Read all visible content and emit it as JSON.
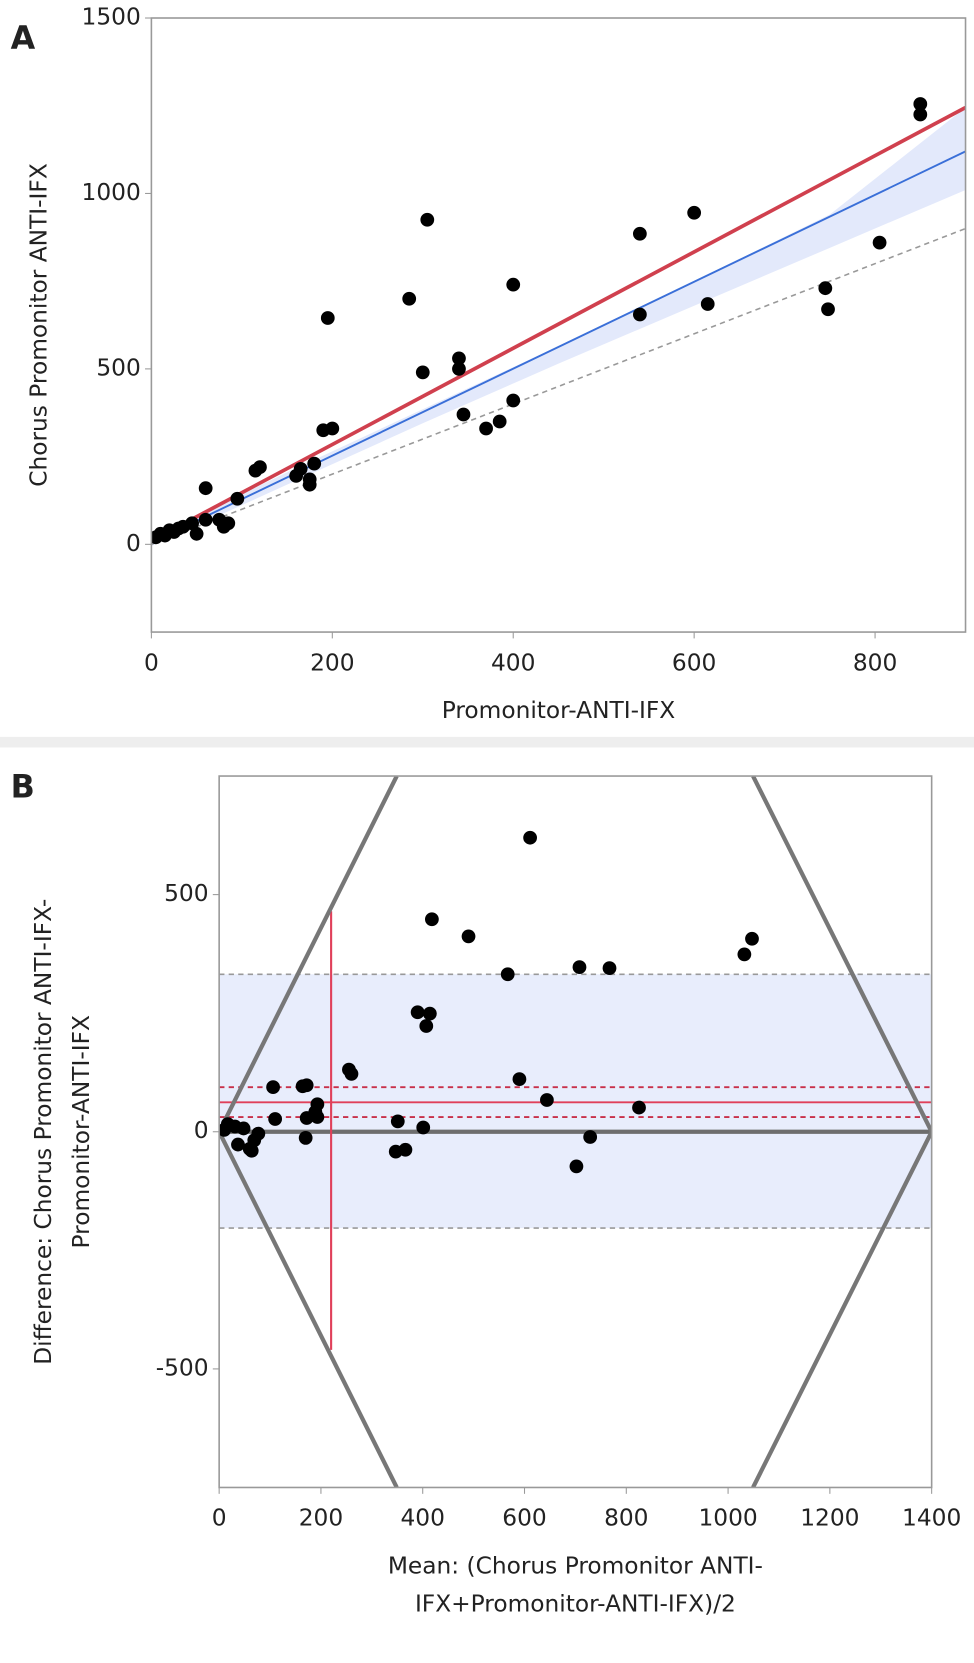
{
  "chart_data": [
    {
      "type": "scatter",
      "label": "A",
      "xlabel": [
        "Promonitor-ANTI-IFX"
      ],
      "ylabel": [
        "Chorus Promonitor ANTI-IFX"
      ],
      "xlim": [
        0,
        900
      ],
      "ylim": [
        -250,
        1500
      ],
      "xticks": [
        0,
        200,
        400,
        600,
        800
      ],
      "yticks": [
        0,
        500,
        1000,
        1500
      ],
      "color": "#000000",
      "x": [
        850,
        850,
        805,
        745,
        748,
        600,
        615,
        540,
        540,
        400,
        400,
        385,
        370,
        345,
        340,
        340,
        305,
        300,
        285,
        195,
        200,
        190,
        180,
        175,
        175,
        165,
        160,
        120,
        115,
        95,
        85,
        80,
        75,
        60,
        60,
        50,
        45,
        35,
        30,
        20,
        10,
        5,
        15,
        25
      ],
      "values": [
        1255,
        1225,
        860,
        730,
        670,
        945,
        685,
        885,
        655,
        740,
        410,
        350,
        330,
        370,
        530,
        500,
        925,
        490,
        700,
        645,
        330,
        325,
        230,
        185,
        170,
        215,
        195,
        220,
        210,
        130,
        60,
        50,
        70,
        70,
        160,
        30,
        60,
        50,
        45,
        40,
        30,
        20,
        25,
        35
      ],
      "band": {
        "color": "#e3e9fb",
        "x": [
          0,
          150,
          300,
          450,
          600,
          750,
          900
        ],
        "lower": [
          -5,
          170,
          345,
          515,
          680,
          845,
          1010
        ],
        "upper": [
          20,
          205,
          385,
          565,
          750,
          940,
          1245
        ]
      },
      "lines": [
        {
          "color": "#999999",
          "dash": true,
          "width": 1.5,
          "x": [
            0,
            900
          ],
          "values": [
            0,
            900
          ]
        },
        {
          "color": "#3a6fd8",
          "dash": false,
          "width": 1.8,
          "x": [
            0,
            900
          ],
          "values": [
            5,
            1120
          ]
        },
        {
          "color": "#d0404e",
          "dash": false,
          "width": 3.5,
          "x": [
            0,
            900
          ],
          "values": [
            10,
            1245
          ]
        }
      ]
    },
    {
      "type": "bland-altman",
      "label": "B",
      "xlabel": [
        "Mean: (Chorus Promonitor ANTI-",
        "IFX+Promonitor-ANTI-IFX)/2"
      ],
      "ylabel": [
        "Difference: Chorus Promonitor ANTI-IFX-",
        "Promonitor-ANTI-IFX"
      ],
      "xlim": [
        0,
        1400
      ],
      "ylim": [
        -750,
        750
      ],
      "xticks": [
        0,
        200,
        400,
        600,
        800,
        1000,
        1200,
        1400
      ],
      "yticks": [
        -500,
        0,
        500
      ],
      "color": "#000000",
      "x": [
        611,
        418,
        490,
        1047,
        1032,
        567,
        708,
        767,
        390,
        414,
        407,
        255,
        260,
        590,
        644,
        825,
        729,
        702,
        401,
        351,
        347,
        366,
        106,
        164,
        172,
        110,
        172,
        193,
        189,
        193,
        170,
        17,
        31,
        48,
        37,
        60,
        69,
        64,
        77,
        10
      ],
      "values": [
        620,
        448,
        412,
        407,
        374,
        332,
        347,
        345,
        252,
        249,
        223,
        131,
        122,
        111,
        67,
        51,
        -11,
        -73,
        9,
        22,
        -42,
        -38,
        94,
        96,
        98,
        27,
        29,
        58,
        42,
        31,
        -13,
        16,
        11,
        7,
        -27,
        -36,
        -18,
        -40,
        -4,
        4
      ],
      "band": {
        "color": "#e8edfc",
        "lower": -203,
        "upper": 332
      },
      "hlines": [
        {
          "value": 332,
          "color": "#999999",
          "dash": true,
          "width": 1.5
        },
        {
          "value": -203,
          "color": "#999999",
          "dash": true,
          "width": 1.5
        },
        {
          "value": 94,
          "color": "#c8304a",
          "dash": true,
          "width": 1.8
        },
        {
          "value": 31,
          "color": "#c8304a",
          "dash": true,
          "width": 1.8
        },
        {
          "value": 62,
          "color": "#e0405a",
          "dash": false,
          "width": 1.8
        },
        {
          "value": 0,
          "color": "#6e6e6e",
          "dash": false,
          "width": 4
        }
      ],
      "vline": {
        "x": 220,
        "low": -460,
        "high": 465,
        "color": "#e0405a"
      },
      "lines": [
        {
          "color": "#777777",
          "dash": false,
          "width": 4,
          "x": [
            349,
            0,
            349
          ],
          "values": [
            750,
            0,
            -750
          ]
        },
        {
          "color": "#777777",
          "dash": false,
          "width": 4,
          "x": [
            1049,
            1400,
            1049
          ],
          "values": [
            750,
            0,
            -750
          ]
        }
      ]
    }
  ]
}
